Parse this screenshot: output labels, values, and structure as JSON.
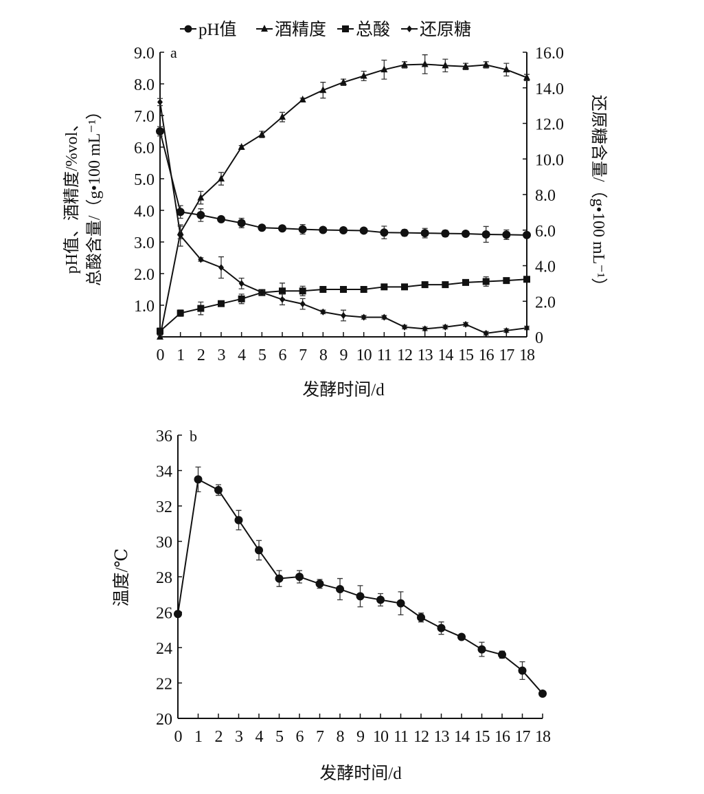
{
  "chart_data": [
    {
      "type": "line",
      "panel_label": "a",
      "xlabel": "发酵时间/d",
      "ylabel_line1": "pH值、酒精度/%vol、",
      "ylabel_line2": "总酸含量/（g•100 mL⁻¹）",
      "y2label": "还原糖含量/（g•100 mL⁻¹）",
      "x": [
        0,
        1,
        2,
        3,
        4,
        5,
        6,
        7,
        8,
        9,
        10,
        11,
        12,
        13,
        14,
        15,
        16,
        17,
        18
      ],
      "ylim": [
        0,
        9.0
      ],
      "y2lim": [
        0,
        16.0
      ],
      "yticks": [
        "1.0",
        "2.0",
        "3.0",
        "4.0",
        "5.0",
        "6.0",
        "7.0",
        "8.0",
        "9.0"
      ],
      "y2ticks": [
        "0",
        "2.0",
        "4.0",
        "6.0",
        "8.0",
        "10.0",
        "12.0",
        "14.0",
        "16.0"
      ],
      "legend_position": "top",
      "series": [
        {
          "name": "pH值",
          "marker": "circle",
          "axis": "left",
          "values": [
            6.5,
            3.95,
            3.85,
            3.72,
            3.6,
            3.45,
            3.43,
            3.4,
            3.38,
            3.37,
            3.36,
            3.3,
            3.29,
            3.28,
            3.27,
            3.26,
            3.24,
            3.23,
            3.22
          ],
          "errors": [
            0.15,
            0.2,
            0.2,
            0.08,
            0.15,
            0.08,
            0.05,
            0.15,
            0.05,
            0.05,
            0.05,
            0.2,
            0.1,
            0.15,
            0.1,
            0.05,
            0.25,
            0.15,
            0.05
          ]
        },
        {
          "name": "酒精度",
          "marker": "triangle",
          "axis": "left",
          "values": [
            0,
            3.3,
            4.4,
            5.0,
            6.0,
            6.4,
            6.95,
            7.5,
            7.8,
            8.05,
            8.25,
            8.45,
            8.6,
            8.62,
            8.58,
            8.55,
            8.6,
            8.45,
            8.2
          ],
          "errors": [
            0.05,
            0.2,
            0.2,
            0.2,
            0.05,
            0.1,
            0.15,
            0.05,
            0.25,
            0.1,
            0.15,
            0.3,
            0.1,
            0.3,
            0.2,
            0.1,
            0.1,
            0.2,
            0.1
          ]
        },
        {
          "name": "总酸",
          "marker": "square",
          "axis": "left",
          "values": [
            0.18,
            0.75,
            0.9,
            1.05,
            1.2,
            1.4,
            1.45,
            1.45,
            1.5,
            1.5,
            1.5,
            1.58,
            1.58,
            1.65,
            1.65,
            1.72,
            1.75,
            1.78,
            1.82
          ],
          "errors": [
            0.1,
            0.1,
            0.2,
            0.05,
            0.15,
            0.05,
            0.25,
            0.15,
            0.05,
            0.05,
            0.05,
            0.05,
            0.05,
            0.05,
            0.05,
            0.05,
            0.15,
            0.05,
            0.05
          ]
        },
        {
          "name": "还原糖",
          "marker": "diamond",
          "axis": "right",
          "values": [
            13.2,
            5.7,
            4.35,
            3.9,
            3.0,
            2.5,
            2.1,
            1.85,
            1.4,
            1.2,
            1.1,
            1.1,
            0.55,
            0.45,
            0.55,
            0.7,
            0.2,
            0.35,
            0.5
          ],
          "errors": [
            0.2,
            0.6,
            0.1,
            0.6,
            0.3,
            0.1,
            0.3,
            0.3,
            0.1,
            0.3,
            0.1,
            0.1,
            0.1,
            0.1,
            0.1,
            0.1,
            0.1,
            0.1,
            0.1
          ]
        }
      ]
    },
    {
      "type": "line",
      "panel_label": "b",
      "xlabel": "发酵时间/d",
      "ylabel": "温度/℃",
      "x": [
        0,
        1,
        2,
        3,
        4,
        5,
        6,
        7,
        8,
        9,
        10,
        11,
        12,
        13,
        14,
        15,
        16,
        17,
        18
      ],
      "ylim": [
        20,
        36
      ],
      "yticks": [
        "20",
        "22",
        "24",
        "26",
        "28",
        "30",
        "32",
        "34",
        "36"
      ],
      "series": [
        {
          "name": "温度",
          "marker": "circle",
          "values": [
            25.9,
            33.5,
            32.9,
            31.2,
            29.5,
            27.9,
            28.0,
            27.6,
            27.3,
            26.9,
            26.7,
            26.5,
            25.7,
            25.1,
            24.6,
            23.9,
            23.6,
            22.7,
            21.4
          ],
          "errors": [
            0.15,
            0.7,
            0.3,
            0.55,
            0.55,
            0.45,
            0.35,
            0.25,
            0.6,
            0.6,
            0.35,
            0.65,
            0.25,
            0.35,
            0.1,
            0.4,
            0.2,
            0.5,
            0.15
          ]
        }
      ]
    }
  ]
}
